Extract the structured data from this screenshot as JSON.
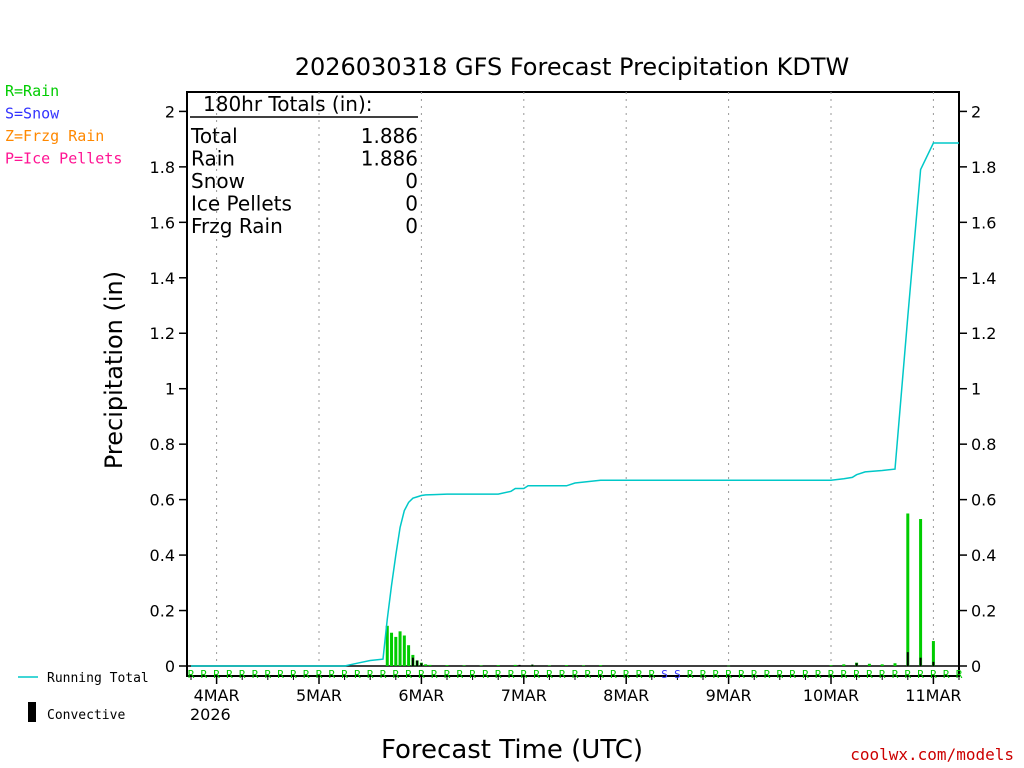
{
  "chart_data": {
    "type": "bar",
    "title": "2026030318 GFS Forecast Precipitation KDTW",
    "xlabel": "Forecast Time (UTC)",
    "ylabel": "Precipitation (in)",
    "ylim": [
      0,
      2.07
    ],
    "yticks": [
      0,
      0.2,
      0.4,
      0.6,
      0.8,
      1,
      1.2,
      1.4,
      1.6,
      1.8,
      2
    ],
    "ytick_labels": [
      "0",
      "0.2",
      "0.4",
      "0.6",
      "0.8",
      "1",
      "1.2",
      "1.4",
      "1.6",
      "1.8",
      "2"
    ],
    "xlim_hours": [
      0,
      180
    ],
    "xticks": [
      {
        "hour": 6,
        "label": "4MAR"
      },
      {
        "hour": 30,
        "label": "5MAR"
      },
      {
        "hour": 54,
        "label": "6MAR"
      },
      {
        "hour": 78,
        "label": "7MAR"
      },
      {
        "hour": 102,
        "label": "8MAR"
      },
      {
        "hour": 126,
        "label": "9MAR"
      },
      {
        "hour": 150,
        "label": "10MAR"
      },
      {
        "hour": 174,
        "label": "11MAR"
      }
    ],
    "year_label": "2026",
    "series": [
      {
        "name": "Rain",
        "color": "#00cc00",
        "hours": [
          46,
          47,
          48,
          49,
          50,
          51,
          52,
          53,
          54,
          55,
          56,
          60,
          64,
          68,
          72,
          76,
          80,
          84,
          88,
          92,
          96,
          126,
          150,
          153,
          156,
          159,
          162,
          165,
          168,
          171,
          174
        ],
        "values": [
          0.145,
          0.12,
          0.105,
          0.125,
          0.11,
          0.075,
          0.04,
          0.02,
          0.012,
          0.006,
          0.004,
          0.003,
          0.002,
          0.002,
          0.003,
          0.004,
          0.004,
          0.002,
          0.003,
          0.002,
          0.003,
          0.001,
          0.003,
          0.006,
          0.012,
          0.008,
          0.006,
          0.01,
          0.55,
          0.53,
          0.09
        ]
      },
      {
        "name": "Convective",
        "color": "#000000",
        "hours": [
          52,
          53,
          54,
          77,
          80,
          156,
          168,
          171,
          174
        ],
        "values": [
          0.03,
          0.02,
          0.01,
          0.004,
          0.005,
          0.01,
          0.05,
          0.03,
          0.015
        ]
      },
      {
        "name": "Running Total",
        "color": "#00c8c8",
        "hours": [
          0,
          36,
          39,
          42,
          45,
          46,
          47,
          48,
          49,
          50,
          51,
          52,
          53,
          54,
          55,
          57,
          60,
          66,
          72,
          75,
          76,
          78,
          79,
          84,
          88,
          90,
          93,
          96,
          126,
          150,
          153,
          155,
          156,
          158,
          162,
          165,
          168,
          171,
          174,
          180
        ],
        "values": [
          0.0,
          0.0,
          0.01,
          0.02,
          0.025,
          0.17,
          0.29,
          0.4,
          0.5,
          0.56,
          0.59,
          0.605,
          0.61,
          0.615,
          0.617,
          0.618,
          0.62,
          0.62,
          0.62,
          0.63,
          0.64,
          0.64,
          0.65,
          0.65,
          0.65,
          0.66,
          0.665,
          0.67,
          0.67,
          0.67,
          0.675,
          0.68,
          0.69,
          0.7,
          0.705,
          0.71,
          1.26,
          1.79,
          1.886,
          1.886
        ]
      }
    ],
    "precip_type_markers": "R=Rain / S=Snow along bottom axis for each forecast hour"
  },
  "totals_box": {
    "header": "180hr Totals (in):",
    "rows": [
      {
        "label": "Total",
        "value": "1.886"
      },
      {
        "label": "Rain",
        "value": "1.886"
      },
      {
        "label": "Snow",
        "value": "0"
      },
      {
        "label": "Ice Pellets",
        "value": "0"
      },
      {
        "label": "Frzg Rain",
        "value": "0"
      }
    ]
  },
  "type_legend": [
    {
      "text": "R=Rain",
      "color": "#00cc00"
    },
    {
      "text": "S=Snow",
      "color": "#3333ff"
    },
    {
      "text": "Z=Frzg Rain",
      "color": "#ff8800"
    },
    {
      "text": "P=Ice Pellets",
      "color": "#ff1493"
    }
  ],
  "line_legend": {
    "running_total": "Running Total",
    "convective": "Convective"
  },
  "credit": "coolwx.com/models"
}
